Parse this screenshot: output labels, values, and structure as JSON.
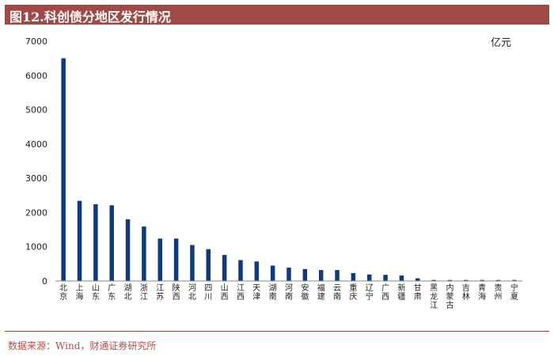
{
  "title": "图12.科创债分地区发行情况",
  "source": "数据来源：Wind，财通证券研究所",
  "chart_data": {
    "type": "bar",
    "unit": "亿元",
    "color": "#0f3a7e",
    "ylim": [
      0,
      7000
    ],
    "yticks": [
      0,
      1000,
      2000,
      3000,
      4000,
      5000,
      6000,
      7000
    ],
    "grid": false,
    "categories": [
      "北京",
      "上海",
      "山东",
      "广东",
      "湖北",
      "浙江",
      "江苏",
      "陕西",
      "河北",
      "四川",
      "山西",
      "江西",
      "天津",
      "湖南",
      "河南",
      "安徽",
      "福建",
      "云南",
      "重庆",
      "辽宁",
      "广西",
      "新疆",
      "甘肃",
      "黑龙江",
      "内蒙古",
      "吉林",
      "青海",
      "贵州",
      "宁夏"
    ],
    "values": [
      6500,
      2340,
      2240,
      2210,
      1800,
      1590,
      1240,
      1240,
      1050,
      930,
      760,
      610,
      570,
      450,
      390,
      350,
      320,
      320,
      230,
      190,
      180,
      160,
      80,
      30,
      30,
      30,
      30,
      30,
      30
    ]
  }
}
